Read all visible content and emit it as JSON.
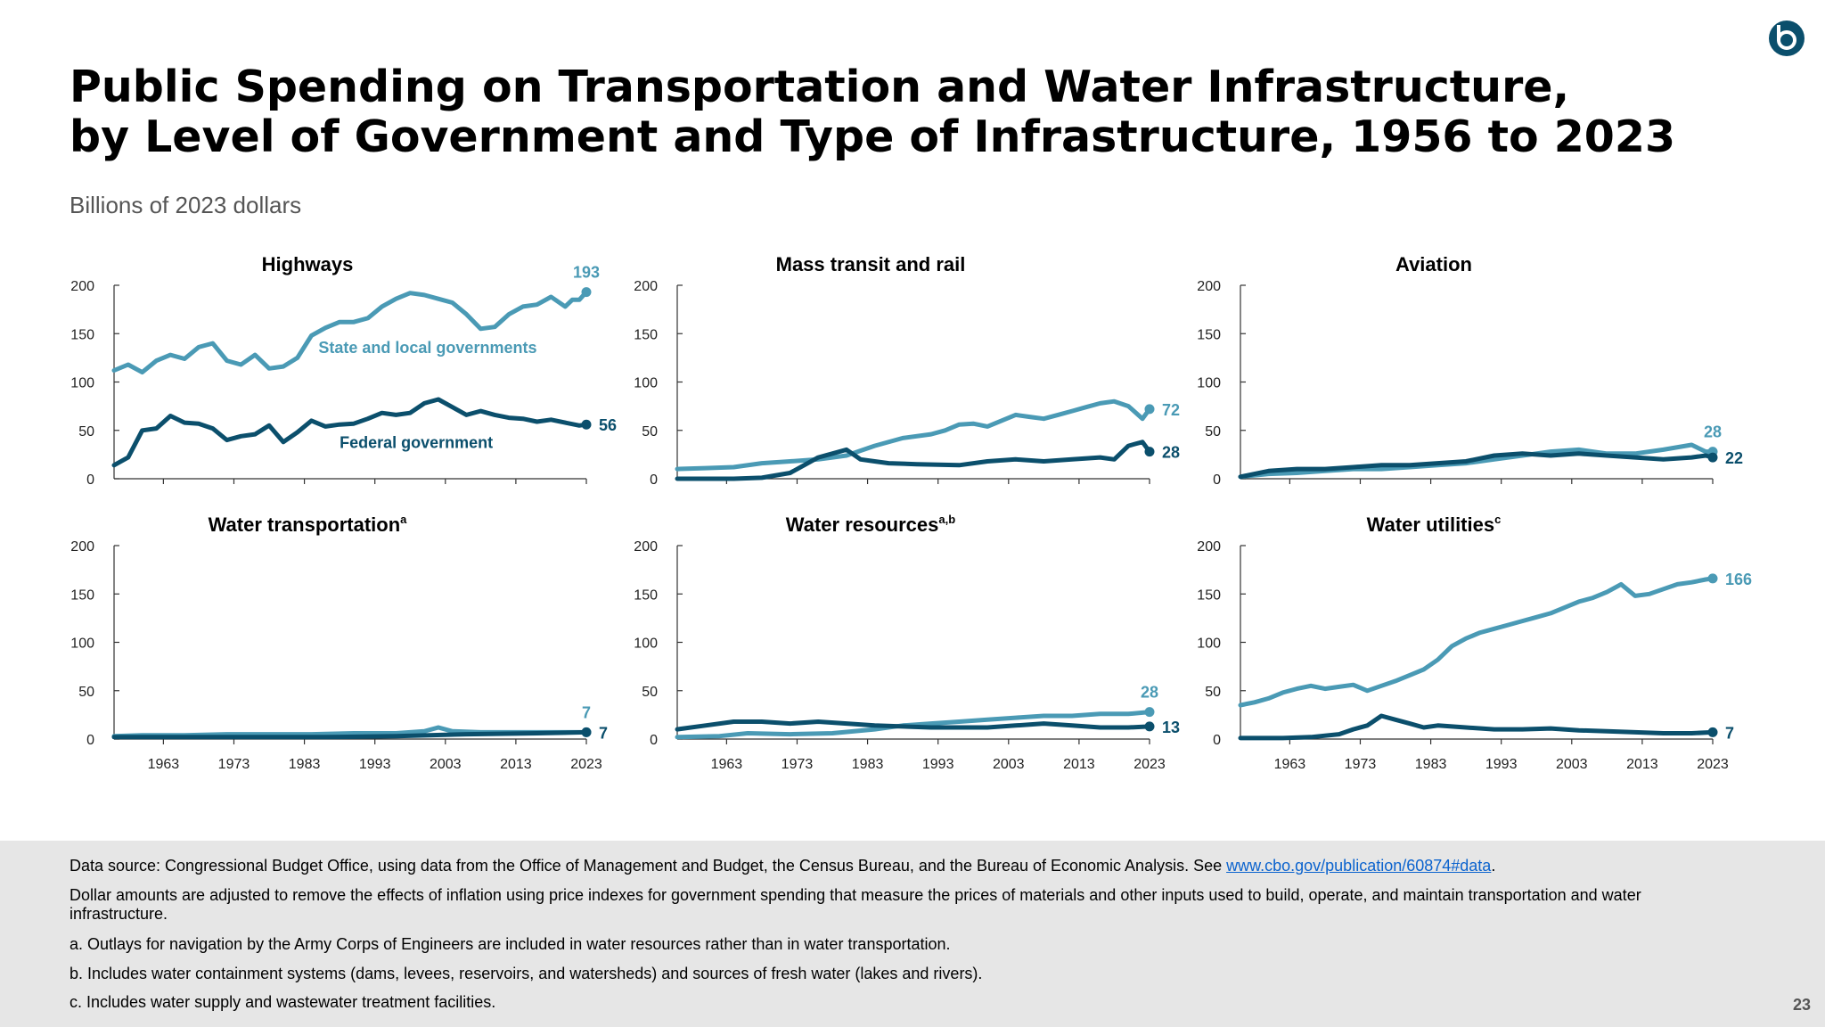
{
  "title_line1": "Public Spending on Transportation and Water Infrastructure,",
  "title_line2": "by Level of Government and Type of Infrastructure, 1956 to 2023",
  "subtitle": "Billions of 2023 dollars",
  "colors": {
    "state_local": "#4a9ab5",
    "federal": "#0b4f6c"
  },
  "logo_icon": "cbo-logo-icon",
  "footer": {
    "source_prefix": "Data source: Congressional Budget Office, using data from the Office of Management and Budget, the Census Bureau, and the Bureau of Economic Analysis. See ",
    "source_link": "www.cbo.gov/publication/60874#data",
    "source_suffix": ".",
    "note_inflation": "Dollar amounts are adjusted to remove the effects of inflation using price indexes for government spending that measure the prices of materials and other inputs used to build, operate, and maintain transportation and water infrastructure.",
    "note_a": "a. Outlays for navigation by the Army Corps of Engineers are included in water resources rather than in water transportation.",
    "note_b": "b. Includes water containment systems (dams, levees, reservoirs, and watersheds) and sources of fresh water (lakes and rivers).",
    "note_c": "c. Includes water supply and wastewater treatment facilities."
  },
  "page_number": "23",
  "chart_data": [
    {
      "type": "line",
      "title": "Highways",
      "title_sup": "",
      "ylim": [
        0,
        200
      ],
      "yticks": [
        0,
        50,
        100,
        150,
        200
      ],
      "xlim": [
        1956,
        2023
      ],
      "xticks": [
        1963,
        1973,
        1983,
        1993,
        2003,
        2013,
        2023
      ],
      "show_xticks": false,
      "series": [
        {
          "name": "State and local governments",
          "color_key": "state_local",
          "end_label": "193",
          "end_label_pos": "above",
          "inline_label": "State and local governments",
          "x": [
            1956,
            1958,
            1960,
            1962,
            1964,
            1966,
            1968,
            1970,
            1972,
            1974,
            1976,
            1978,
            1980,
            1982,
            1984,
            1986,
            1988,
            1990,
            1992,
            1994,
            1996,
            1998,
            2000,
            2002,
            2004,
            2006,
            2008,
            2010,
            2012,
            2014,
            2016,
            2018,
            2020,
            2021,
            2022,
            2023
          ],
          "values": [
            112,
            118,
            110,
            122,
            128,
            124,
            136,
            140,
            122,
            118,
            128,
            114,
            116,
            125,
            148,
            156,
            162,
            162,
            166,
            178,
            186,
            192,
            190,
            186,
            182,
            170,
            155,
            157,
            170,
            178,
            180,
            188,
            178,
            185,
            185,
            193
          ]
        },
        {
          "name": "Federal government",
          "color_key": "federal",
          "end_label": "56",
          "end_label_pos": "right",
          "inline_label": "Federal government",
          "x": [
            1956,
            1958,
            1960,
            1962,
            1964,
            1966,
            1968,
            1970,
            1972,
            1974,
            1976,
            1978,
            1980,
            1982,
            1984,
            1986,
            1988,
            1990,
            1992,
            1994,
            1996,
            1998,
            2000,
            2002,
            2004,
            2006,
            2008,
            2010,
            2012,
            2014,
            2016,
            2018,
            2020,
            2022,
            2023
          ],
          "values": [
            14,
            22,
            50,
            52,
            65,
            58,
            57,
            52,
            40,
            44,
            46,
            55,
            38,
            48,
            60,
            54,
            56,
            57,
            62,
            68,
            66,
            68,
            78,
            82,
            74,
            66,
            70,
            66,
            63,
            62,
            59,
            61,
            58,
            55,
            56
          ]
        }
      ]
    },
    {
      "type": "line",
      "title": "Mass transit and rail",
      "title_sup": "",
      "ylim": [
        0,
        200
      ],
      "yticks": [
        0,
        50,
        100,
        150,
        200
      ],
      "xlim": [
        1956,
        2023
      ],
      "xticks": [
        1963,
        1973,
        1983,
        1993,
        2003,
        2013,
        2023
      ],
      "show_xticks": false,
      "series": [
        {
          "name": "State and local governments",
          "color_key": "state_local",
          "end_label": "72",
          "end_label_pos": "right",
          "x": [
            1956,
            1960,
            1964,
            1968,
            1972,
            1976,
            1980,
            1984,
            1988,
            1992,
            1994,
            1996,
            1998,
            2000,
            2002,
            2004,
            2006,
            2008,
            2010,
            2012,
            2014,
            2016,
            2018,
            2020,
            2022,
            2023
          ],
          "values": [
            10,
            11,
            12,
            16,
            18,
            20,
            24,
            34,
            42,
            46,
            50,
            56,
            57,
            54,
            60,
            66,
            64,
            62,
            66,
            70,
            74,
            78,
            80,
            75,
            62,
            72
          ]
        },
        {
          "name": "Federal government",
          "color_key": "federal",
          "end_label": "28",
          "end_label_pos": "right",
          "x": [
            1956,
            1964,
            1968,
            1972,
            1974,
            1976,
            1978,
            1980,
            1982,
            1984,
            1986,
            1990,
            1996,
            2000,
            2004,
            2008,
            2012,
            2016,
            2018,
            2020,
            2021,
            2022,
            2023
          ],
          "values": [
            0,
            0,
            1,
            6,
            14,
            22,
            26,
            30,
            20,
            18,
            16,
            15,
            14,
            18,
            20,
            18,
            20,
            22,
            20,
            34,
            36,
            38,
            28
          ]
        }
      ]
    },
    {
      "type": "line",
      "title": "Aviation",
      "title_sup": "",
      "ylim": [
        0,
        200
      ],
      "yticks": [
        0,
        50,
        100,
        150,
        200
      ],
      "xlim": [
        1956,
        2023
      ],
      "xticks": [
        1963,
        1973,
        1983,
        1993,
        2003,
        2013,
        2023
      ],
      "show_xticks": false,
      "series": [
        {
          "name": "State and local governments",
          "color_key": "state_local",
          "end_label": "28",
          "end_label_pos": "above",
          "x": [
            1956,
            1960,
            1964,
            1968,
            1972,
            1976,
            1980,
            1984,
            1988,
            1992,
            1996,
            2000,
            2004,
            2008,
            2012,
            2016,
            2020,
            2022,
            2023
          ],
          "values": [
            2,
            5,
            6,
            8,
            10,
            10,
            12,
            14,
            16,
            20,
            24,
            28,
            30,
            26,
            26,
            30,
            35,
            28,
            28
          ]
        },
        {
          "name": "Federal government",
          "color_key": "federal",
          "end_label": "22",
          "end_label_pos": "right",
          "x": [
            1956,
            1960,
            1964,
            1968,
            1972,
            1976,
            1980,
            1984,
            1988,
            1992,
            1996,
            2000,
            2004,
            2008,
            2012,
            2016,
            2020,
            2022,
            2023
          ],
          "values": [
            2,
            8,
            10,
            10,
            12,
            14,
            14,
            16,
            18,
            24,
            26,
            24,
            26,
            24,
            22,
            20,
            22,
            24,
            22
          ]
        }
      ]
    },
    {
      "type": "line",
      "title": "Water transportation",
      "title_sup": "a",
      "ylim": [
        0,
        200
      ],
      "yticks": [
        0,
        50,
        100,
        150,
        200
      ],
      "xlim": [
        1956,
        2023
      ],
      "xticks": [
        1963,
        1973,
        1983,
        1993,
        2003,
        2013,
        2023
      ],
      "show_xticks": true,
      "series": [
        {
          "name": "State and local governments",
          "color_key": "state_local",
          "end_label": "7",
          "end_label_pos": "above",
          "x": [
            1956,
            1960,
            1966,
            1972,
            1978,
            1984,
            1990,
            1996,
            2000,
            2002,
            2004,
            2008,
            2014,
            2020,
            2023
          ],
          "values": [
            3,
            4,
            4,
            5,
            5,
            5,
            6,
            6,
            8,
            12,
            8,
            7,
            7,
            7,
            7
          ]
        },
        {
          "name": "Federal government",
          "color_key": "federal",
          "end_label": "7",
          "end_label_pos": "right",
          "x": [
            1956,
            1966,
            1976,
            1986,
            1996,
            2006,
            2016,
            2023
          ],
          "values": [
            2,
            2,
            2,
            2,
            3,
            5,
            6,
            7
          ]
        }
      ]
    },
    {
      "type": "line",
      "title": "Water resources",
      "title_sup": "a,b",
      "ylim": [
        0,
        200
      ],
      "yticks": [
        0,
        50,
        100,
        150,
        200
      ],
      "xlim": [
        1956,
        2023
      ],
      "xticks": [
        1963,
        1973,
        1983,
        1993,
        2003,
        2013,
        2023
      ],
      "show_xticks": true,
      "series": [
        {
          "name": "State and local governments",
          "color_key": "state_local",
          "end_label": "28",
          "end_label_pos": "above",
          "x": [
            1956,
            1962,
            1966,
            1972,
            1978,
            1984,
            1988,
            1992,
            1996,
            2000,
            2004,
            2008,
            2012,
            2016,
            2020,
            2023
          ],
          "values": [
            2,
            3,
            6,
            5,
            6,
            10,
            14,
            16,
            18,
            20,
            22,
            24,
            24,
            26,
            26,
            28
          ]
        },
        {
          "name": "Federal government",
          "color_key": "federal",
          "end_label": "13",
          "end_label_pos": "right",
          "x": [
            1956,
            1960,
            1964,
            1968,
            1972,
            1976,
            1980,
            1984,
            1988,
            1992,
            1996,
            2000,
            2004,
            2008,
            2012,
            2016,
            2020,
            2023
          ],
          "values": [
            10,
            14,
            18,
            18,
            16,
            18,
            16,
            14,
            13,
            12,
            12,
            12,
            14,
            16,
            14,
            12,
            12,
            13
          ]
        }
      ]
    },
    {
      "type": "line",
      "title": "Water utilities",
      "title_sup": "c",
      "ylim": [
        0,
        200
      ],
      "yticks": [
        0,
        50,
        100,
        150,
        200
      ],
      "xlim": [
        1956,
        2023
      ],
      "xticks": [
        1963,
        1973,
        1983,
        1993,
        2003,
        2013,
        2023
      ],
      "show_xticks": true,
      "series": [
        {
          "name": "State and local governments",
          "color_key": "state_local",
          "end_label": "166",
          "end_label_pos": "right",
          "x": [
            1956,
            1958,
            1960,
            1962,
            1964,
            1966,
            1968,
            1970,
            1972,
            1974,
            1976,
            1978,
            1980,
            1982,
            1984,
            1986,
            1988,
            1990,
            1992,
            1994,
            1996,
            1998,
            2000,
            2002,
            2004,
            2006,
            2008,
            2010,
            2012,
            2014,
            2016,
            2018,
            2020,
            2022,
            2023
          ],
          "values": [
            35,
            38,
            42,
            48,
            52,
            55,
            52,
            54,
            56,
            50,
            55,
            60,
            66,
            72,
            82,
            96,
            104,
            110,
            114,
            118,
            122,
            126,
            130,
            136,
            142,
            146,
            152,
            160,
            148,
            150,
            155,
            160,
            162,
            165,
            166
          ]
        },
        {
          "name": "Federal government",
          "color_key": "federal",
          "end_label": "7",
          "end_label_pos": "right",
          "x": [
            1956,
            1962,
            1966,
            1970,
            1972,
            1974,
            1976,
            1978,
            1980,
            1982,
            1984,
            1988,
            1992,
            1996,
            2000,
            2004,
            2008,
            2012,
            2016,
            2020,
            2023
          ],
          "values": [
            1,
            1,
            2,
            5,
            10,
            14,
            24,
            20,
            16,
            12,
            14,
            12,
            10,
            10,
            11,
            9,
            8,
            7,
            6,
            6,
            7
          ]
        }
      ]
    }
  ]
}
